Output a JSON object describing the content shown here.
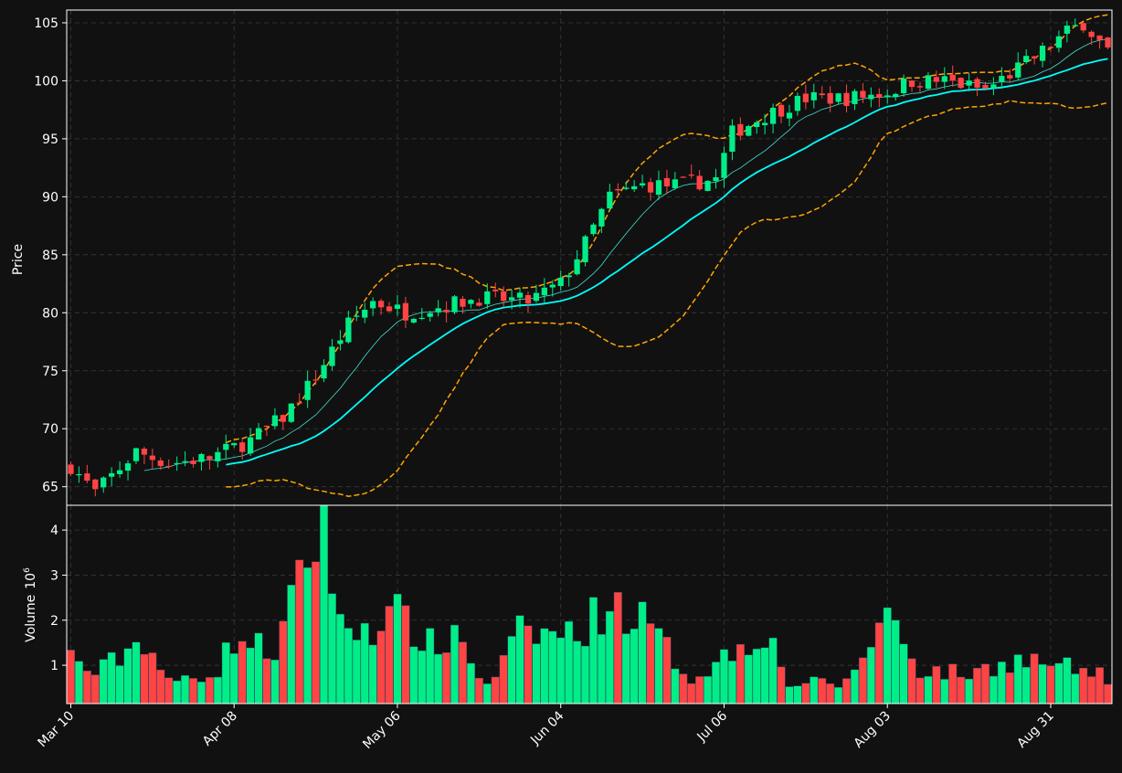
{
  "chart_data": {
    "type": "candlestick",
    "colors": {
      "background": "#111111",
      "up": "#00ee88",
      "down": "#ff4444",
      "bollinger": "#ffa500",
      "ma_fast": "#40e0d0",
      "ma_slow": "#00ffff",
      "grid": "#3a3a3a",
      "axes": "#ffffff"
    },
    "price_panel": {
      "ylabel": "Price",
      "ylim": [
        63.4,
        106.1
      ],
      "yticks": [
        65,
        70,
        75,
        80,
        85,
        90,
        95,
        100,
        105
      ]
    },
    "volume_panel": {
      "ylabel": "Volume",
      "ylabel_exponent": "10",
      "ylabel_power": "6",
      "ylim": [
        0.15,
        4.55
      ],
      "yticks": [
        1,
        2,
        3,
        4
      ]
    },
    "x_axis": {
      "tick_labels": [
        "Mar 10",
        "Apr 08",
        "May 06",
        "Jun 04",
        "Jul 06",
        "Aug 03",
        "Aug 31"
      ],
      "tick_index": [
        0,
        20,
        40,
        60,
        80,
        100,
        120
      ],
      "n_bars": 128
    },
    "price_anchors": [
      [
        0,
        66.8
      ],
      [
        3,
        64.5
      ],
      [
        8,
        68
      ],
      [
        12,
        67
      ],
      [
        17,
        67.5
      ],
      [
        22,
        69
      ],
      [
        26,
        71
      ],
      [
        30,
        74.5
      ],
      [
        34,
        79
      ],
      [
        37,
        81
      ],
      [
        41,
        80
      ],
      [
        45,
        80.5
      ],
      [
        50,
        81.3
      ],
      [
        56,
        81
      ],
      [
        60,
        82.5
      ],
      [
        63,
        86
      ],
      [
        66,
        90
      ],
      [
        70,
        91
      ],
      [
        74,
        91
      ],
      [
        79,
        91.5
      ],
      [
        81,
        95.5
      ],
      [
        85,
        97
      ],
      [
        90,
        98.5
      ],
      [
        95,
        98.5
      ],
      [
        100,
        99
      ],
      [
        103,
        100
      ],
      [
        107,
        100
      ],
      [
        112,
        99.2
      ],
      [
        118,
        102
      ],
      [
        122,
        104.2
      ],
      [
        124,
        105
      ],
      [
        127,
        102.5
      ]
    ],
    "volume_anchors": [
      [
        0,
        1.2
      ],
      [
        3,
        0.8
      ],
      [
        9,
        1.6
      ],
      [
        12,
        0.6
      ],
      [
        18,
        0.9
      ],
      [
        20,
        1.6
      ],
      [
        25,
        1.3
      ],
      [
        31,
        4.3
      ],
      [
        33,
        1.8
      ],
      [
        37,
        1.9
      ],
      [
        40,
        2.1
      ],
      [
        45,
        1.3
      ],
      [
        47,
        1.8
      ],
      [
        51,
        0.5
      ],
      [
        55,
        1.7
      ],
      [
        62,
        1.7
      ],
      [
        66,
        2.4
      ],
      [
        70,
        2.0
      ],
      [
        76,
        0.7
      ],
      [
        85,
        1.8
      ],
      [
        88,
        0.6
      ],
      [
        95,
        0.6
      ],
      [
        100,
        2.2
      ],
      [
        104,
        0.9
      ],
      [
        110,
        0.8
      ],
      [
        115,
        1.1
      ],
      [
        118,
        1.1
      ],
      [
        127,
        0.75
      ]
    ],
    "series": [
      {
        "kind": "candles",
        "panel": "price"
      },
      {
        "kind": "volume_bars",
        "panel": "volume"
      },
      {
        "kind": "line",
        "window": 10
      },
      {
        "kind": "line",
        "window": 20
      },
      {
        "kind": "band",
        "window": 20,
        "stdev": 2
      }
    ],
    "grid": true
  }
}
